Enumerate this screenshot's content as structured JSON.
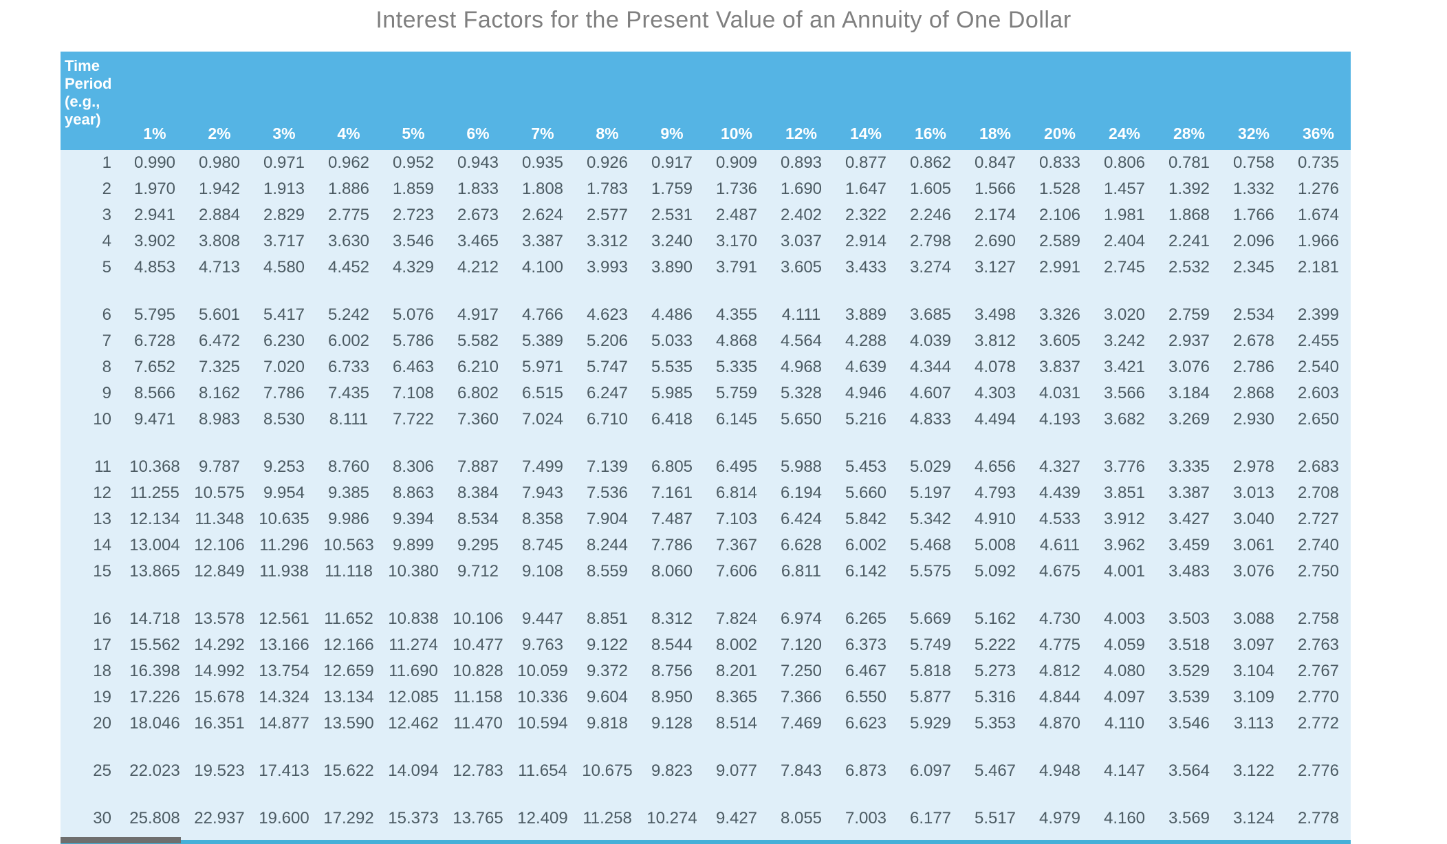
{
  "title": "Interest Factors for the Present Value of an Annuity of One Dollar",
  "colors": {
    "header_bg": "#55B4E4",
    "body_bg": "#E0EFF9",
    "bottom_border": "#45B0D8",
    "cell_text": "#4C5B63",
    "header_text": "#FFFFFF",
    "title_text": "#7F7F7F"
  },
  "table": {
    "period_header": "Time Period (e.g., year)",
    "rates": [
      "1%",
      "2%",
      "3%",
      "4%",
      "5%",
      "6%",
      "7%",
      "8%",
      "9%",
      "10%",
      "12%",
      "14%",
      "16%",
      "18%",
      "20%",
      "24%",
      "28%",
      "32%",
      "36%"
    ],
    "groups": [
      {
        "rows": [
          {
            "period": "1",
            "values": [
              "0.990",
              "0.980",
              "0.971",
              "0.962",
              "0.952",
              "0.943",
              "0.935",
              "0.926",
              "0.917",
              "0.909",
              "0.893",
              "0.877",
              "0.862",
              "0.847",
              "0.833",
              "0.806",
              "0.781",
              "0.758",
              "0.735"
            ]
          },
          {
            "period": "2",
            "values": [
              "1.970",
              "1.942",
              "1.913",
              "1.886",
              "1.859",
              "1.833",
              "1.808",
              "1.783",
              "1.759",
              "1.736",
              "1.690",
              "1.647",
              "1.605",
              "1.566",
              "1.528",
              "1.457",
              "1.392",
              "1.332",
              "1.276"
            ]
          },
          {
            "period": "3",
            "values": [
              "2.941",
              "2.884",
              "2.829",
              "2.775",
              "2.723",
              "2.673",
              "2.624",
              "2.577",
              "2.531",
              "2.487",
              "2.402",
              "2.322",
              "2.246",
              "2.174",
              "2.106",
              "1.981",
              "1.868",
              "1.766",
              "1.674"
            ]
          },
          {
            "period": "4",
            "values": [
              "3.902",
              "3.808",
              "3.717",
              "3.630",
              "3.546",
              "3.465",
              "3.387",
              "3.312",
              "3.240",
              "3.170",
              "3.037",
              "2.914",
              "2.798",
              "2.690",
              "2.589",
              "2.404",
              "2.241",
              "2.096",
              "1.966"
            ]
          },
          {
            "period": "5",
            "values": [
              "4.853",
              "4.713",
              "4.580",
              "4.452",
              "4.329",
              "4.212",
              "4.100",
              "3.993",
              "3.890",
              "3.791",
              "3.605",
              "3.433",
              "3.274",
              "3.127",
              "2.991",
              "2.745",
              "2.532",
              "2.345",
              "2.181"
            ]
          }
        ]
      },
      {
        "rows": [
          {
            "period": "6",
            "values": [
              "5.795",
              "5.601",
              "5.417",
              "5.242",
              "5.076",
              "4.917",
              "4.766",
              "4.623",
              "4.486",
              "4.355",
              "4.111",
              "3.889",
              "3.685",
              "3.498",
              "3.326",
              "3.020",
              "2.759",
              "2.534",
              "2.399"
            ]
          },
          {
            "period": "7",
            "values": [
              "6.728",
              "6.472",
              "6.230",
              "6.002",
              "5.786",
              "5.582",
              "5.389",
              "5.206",
              "5.033",
              "4.868",
              "4.564",
              "4.288",
              "4.039",
              "3.812",
              "3.605",
              "3.242",
              "2.937",
              "2.678",
              "2.455"
            ]
          },
          {
            "period": "8",
            "values": [
              "7.652",
              "7.325",
              "7.020",
              "6.733",
              "6.463",
              "6.210",
              "5.971",
              "5.747",
              "5.535",
              "5.335",
              "4.968",
              "4.639",
              "4.344",
              "4.078",
              "3.837",
              "3.421",
              "3.076",
              "2.786",
              "2.540"
            ]
          },
          {
            "period": "9",
            "values": [
              "8.566",
              "8.162",
              "7.786",
              "7.435",
              "7.108",
              "6.802",
              "6.515",
              "6.247",
              "5.985",
              "5.759",
              "5.328",
              "4.946",
              "4.607",
              "4.303",
              "4.031",
              "3.566",
              "3.184",
              "2.868",
              "2.603"
            ]
          },
          {
            "period": "10",
            "values": [
              "9.471",
              "8.983",
              "8.530",
              "8.111",
              "7.722",
              "7.360",
              "7.024",
              "6.710",
              "6.418",
              "6.145",
              "5.650",
              "5.216",
              "4.833",
              "4.494",
              "4.193",
              "3.682",
              "3.269",
              "2.930",
              "2.650"
            ]
          }
        ]
      },
      {
        "rows": [
          {
            "period": "11",
            "values": [
              "10.368",
              "9.787",
              "9.253",
              "8.760",
              "8.306",
              "7.887",
              "7.499",
              "7.139",
              "6.805",
              "6.495",
              "5.988",
              "5.453",
              "5.029",
              "4.656",
              "4.327",
              "3.776",
              "3.335",
              "2.978",
              "2.683"
            ]
          },
          {
            "period": "12",
            "values": [
              "11.255",
              "10.575",
              "9.954",
              "9.385",
              "8.863",
              "8.384",
              "7.943",
              "7.536",
              "7.161",
              "6.814",
              "6.194",
              "5.660",
              "5.197",
              "4.793",
              "4.439",
              "3.851",
              "3.387",
              "3.013",
              "2.708"
            ]
          },
          {
            "period": "13",
            "values": [
              "12.134",
              "11.348",
              "10.635",
              "9.986",
              "9.394",
              "8.534",
              "8.358",
              "7.904",
              "7.487",
              "7.103",
              "6.424",
              "5.842",
              "5.342",
              "4.910",
              "4.533",
              "3.912",
              "3.427",
              "3.040",
              "2.727"
            ]
          },
          {
            "period": "14",
            "values": [
              "13.004",
              "12.106",
              "11.296",
              "10.563",
              "9.899",
              "9.295",
              "8.745",
              "8.244",
              "7.786",
              "7.367",
              "6.628",
              "6.002",
              "5.468",
              "5.008",
              "4.611",
              "3.962",
              "3.459",
              "3.061",
              "2.740"
            ]
          },
          {
            "period": "15",
            "values": [
              "13.865",
              "12.849",
              "11.938",
              "11.118",
              "10.380",
              "9.712",
              "9.108",
              "8.559",
              "8.060",
              "7.606",
              "6.811",
              "6.142",
              "5.575",
              "5.092",
              "4.675",
              "4.001",
              "3.483",
              "3.076",
              "2.750"
            ]
          }
        ]
      },
      {
        "rows": [
          {
            "period": "16",
            "values": [
              "14.718",
              "13.578",
              "12.561",
              "11.652",
              "10.838",
              "10.106",
              "9.447",
              "8.851",
              "8.312",
              "7.824",
              "6.974",
              "6.265",
              "5.669",
              "5.162",
              "4.730",
              "4.003",
              "3.503",
              "3.088",
              "2.758"
            ]
          },
          {
            "period": "17",
            "values": [
              "15.562",
              "14.292",
              "13.166",
              "12.166",
              "11.274",
              "10.477",
              "9.763",
              "9.122",
              "8.544",
              "8.002",
              "7.120",
              "6.373",
              "5.749",
              "5.222",
              "4.775",
              "4.059",
              "3.518",
              "3.097",
              "2.763"
            ]
          },
          {
            "period": "18",
            "values": [
              "16.398",
              "14.992",
              "13.754",
              "12.659",
              "11.690",
              "10.828",
              "10.059",
              "9.372",
              "8.756",
              "8.201",
              "7.250",
              "6.467",
              "5.818",
              "5.273",
              "4.812",
              "4.080",
              "3.529",
              "3.104",
              "2.767"
            ]
          },
          {
            "period": "19",
            "values": [
              "17.226",
              "15.678",
              "14.324",
              "13.134",
              "12.085",
              "11.158",
              "10.336",
              "9.604",
              "8.950",
              "8.365",
              "7.366",
              "6.550",
              "5.877",
              "5.316",
              "4.844",
              "4.097",
              "3.539",
              "3.109",
              "2.770"
            ]
          },
          {
            "period": "20",
            "values": [
              "18.046",
              "16.351",
              "14.877",
              "13.590",
              "12.462",
              "11.470",
              "10.594",
              "9.818",
              "9.128",
              "8.514",
              "7.469",
              "6.623",
              "5.929",
              "5.353",
              "4.870",
              "4.110",
              "3.546",
              "3.113",
              "2.772"
            ]
          }
        ]
      },
      {
        "rows": [
          {
            "period": "25",
            "values": [
              "22.023",
              "19.523",
              "17.413",
              "15.622",
              "14.094",
              "12.783",
              "11.654",
              "10.675",
              "9.823",
              "9.077",
              "7.843",
              "6.873",
              "6.097",
              "5.467",
              "4.948",
              "4.147",
              "3.564",
              "3.122",
              "2.776"
            ]
          }
        ]
      },
      {
        "rows": [
          {
            "period": "30",
            "values": [
              "25.808",
              "22.937",
              "19.600",
              "17.292",
              "15.373",
              "13.765",
              "12.409",
              "11.258",
              "10.274",
              "9.427",
              "8.055",
              "7.003",
              "6.177",
              "5.517",
              "4.979",
              "4.160",
              "3.569",
              "3.124",
              "2.778"
            ]
          }
        ]
      }
    ]
  }
}
